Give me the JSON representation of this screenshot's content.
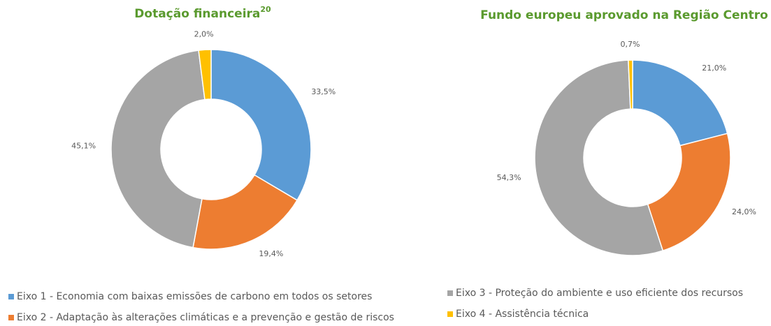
{
  "categories": [
    "Eixo 1 - Economia com baixas emissões de carbono em todos os setores",
    "Eixo 2 - Adaptação às alterações climáticas e a prevenção e gestão de riscos",
    "Eixo 3 - Proteção do ambiente e uso eficiente dos recursos",
    "Eixo 4 - Assistência técnica"
  ],
  "colors": [
    "#5b9bd5",
    "#ed7d31",
    "#a5a5a5",
    "#ffc000"
  ],
  "chart_data": [
    {
      "type": "pie",
      "title": "Dotação financeira",
      "title_superscript": "20",
      "values": [
        33.5,
        19.4,
        45.1,
        2.0
      ],
      "value_labels": [
        "33,5%",
        "19,4%",
        "45,1%",
        "2,0%"
      ]
    },
    {
      "type": "pie",
      "title": "Fundo europeu aprovado na Região Centro",
      "values": [
        21.0,
        24.0,
        54.3,
        0.7
      ],
      "value_labels": [
        "21,0%",
        "24,0%",
        "54,3%",
        "0,7%"
      ]
    }
  ]
}
